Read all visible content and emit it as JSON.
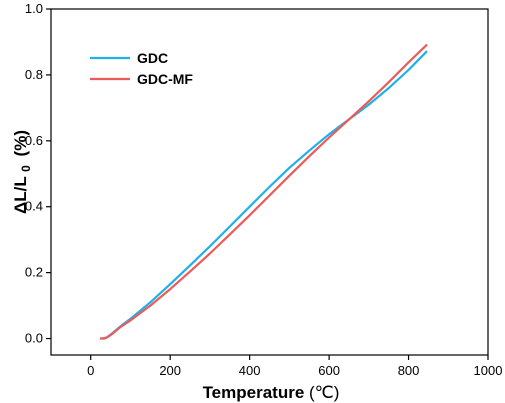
{
  "chart_data": {
    "type": "line",
    "xlabel": "Temperature",
    "xlabel_unit": "(℃)",
    "ylabel_main": "ΔL/L",
    "ylabel_sub": "0",
    "ylabel_unit": "(%)",
    "xlim": [
      -100,
      1000
    ],
    "ylim": [
      -0.05,
      1.0
    ],
    "xticks": [
      0,
      200,
      400,
      600,
      800,
      1000
    ],
    "xtick_labels": [
      "0",
      "200",
      "400",
      "600",
      "800",
      "1000"
    ],
    "yticks": [
      0.0,
      0.2,
      0.4,
      0.6,
      0.8,
      1.0
    ],
    "ytick_labels": [
      "0.0",
      "0.2",
      "0.4",
      "0.6",
      "0.8",
      "1.0"
    ],
    "grid": false,
    "legend_position": "top-left",
    "series": [
      {
        "name": "GDC",
        "color": "#1fb0ea",
        "x": [
          30,
          40,
          50,
          60,
          70,
          80,
          100,
          150,
          200,
          250,
          300,
          350,
          400,
          450,
          500,
          550,
          600,
          650,
          700,
          750,
          800,
          845
        ],
        "y": [
          0.0,
          0.003,
          0.012,
          0.022,
          0.032,
          0.042,
          0.06,
          0.11,
          0.165,
          0.222,
          0.28,
          0.34,
          0.4,
          0.46,
          0.518,
          0.57,
          0.62,
          0.665,
          0.71,
          0.76,
          0.815,
          0.87
        ]
      },
      {
        "name": "GDC-MF",
        "color": "#ec5a5a",
        "x": [
          25,
          35,
          45,
          55,
          65,
          75,
          100,
          150,
          200,
          250,
          300,
          350,
          400,
          450,
          500,
          550,
          600,
          650,
          700,
          750,
          800,
          845
        ],
        "y": [
          0.0,
          0.0,
          0.006,
          0.015,
          0.025,
          0.035,
          0.055,
          0.1,
          0.15,
          0.203,
          0.258,
          0.316,
          0.374,
          0.434,
          0.494,
          0.553,
          0.61,
          0.665,
          0.72,
          0.778,
          0.838,
          0.89
        ]
      }
    ]
  }
}
